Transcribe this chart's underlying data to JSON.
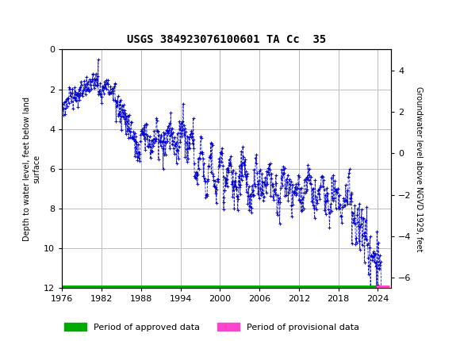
{
  "title": "USGS 384923076100601 TA Cc  35",
  "ylabel_left": "Depth to water level, feet below land\nsurface",
  "ylabel_right": "Groundwater level above NGVD 1929, feet",
  "ylim_left": [
    12,
    0
  ],
  "ylim_right": [
    -6.5,
    5.0
  ],
  "xlim": [
    1976,
    2026
  ],
  "yticks_left": [
    0,
    2,
    4,
    6,
    8,
    10,
    12
  ],
  "yticks_right": [
    4,
    2,
    0,
    -2,
    -4,
    -6
  ],
  "xticks": [
    1976,
    1982,
    1988,
    1994,
    2000,
    2006,
    2012,
    2018,
    2024
  ],
  "header_color": "#1a6b3c",
  "data_color": "#0000cc",
  "approved_color": "#00aa00",
  "provisional_color": "#ff44cc",
  "background_color": "#ffffff",
  "grid_color": "#bbbbbb",
  "approved_end_year": 2023.7,
  "provisional_start_year": 2023.7,
  "provisional_end_year": 2025.8,
  "legend_approved": "Period of approved data",
  "legend_provisional": "Period of provisional data",
  "title_fontsize": 10,
  "tick_fontsize": 8,
  "ylabel_fontsize": 7,
  "legend_fontsize": 8
}
